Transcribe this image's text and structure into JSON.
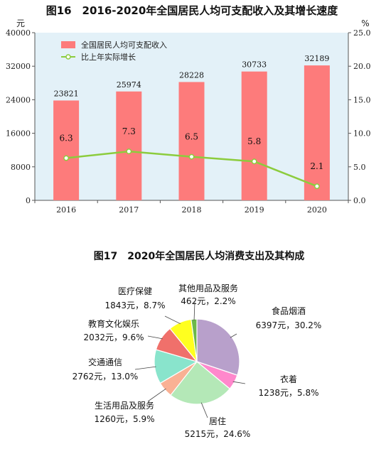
{
  "chart_data": [
    {
      "type": "bar",
      "title": "图16　2016-2020年全国居民人均可支配收入及其增长速度",
      "left_unit": "元",
      "right_unit": "%",
      "categories": [
        "2016",
        "2017",
        "2018",
        "2019",
        "2020"
      ],
      "left_ticks": [
        0,
        8000,
        16000,
        24000,
        32000,
        40000
      ],
      "right_ticks": [
        "0.0",
        "5.0",
        "10.0",
        "15.0",
        "20.0",
        "25.0"
      ],
      "ylim": [
        0,
        40000
      ],
      "y2lim": [
        0,
        25
      ],
      "grid": false,
      "legend_position": "top-left",
      "series": [
        {
          "name": "全国居民人均可支配收入",
          "type": "bar",
          "axis": "left",
          "values": [
            23821,
            25974,
            28228,
            30733,
            32189
          ]
        },
        {
          "name": "比上年实际增长",
          "type": "line",
          "axis": "right",
          "values": [
            6.3,
            7.3,
            6.5,
            5.8,
            2.1
          ]
        }
      ],
      "value_labels": {
        "bars": [
          "23821",
          "25974",
          "28228",
          "30733",
          "32189"
        ],
        "line": [
          "6.3",
          "7.3",
          "6.5",
          "5.8",
          "2.1"
        ]
      },
      "colors": {
        "bars": "#fd7b7b",
        "line": "#8ccc3d",
        "plot_background": "#e3f1f8"
      }
    },
    {
      "type": "pie",
      "title": "图17　2020年全国居民人均消费支出及其构成",
      "slices": [
        {
          "name": "食品烟酒",
          "value": 6397,
          "percent": 30.2,
          "value_label": "6397元，30.2%",
          "color": "#b8a0cb"
        },
        {
          "name": "衣着",
          "value": 1238,
          "percent": 5.8,
          "value_label": "1238元，5.8%",
          "color": "#ff88cc"
        },
        {
          "name": "居住",
          "value": 5215,
          "percent": 24.6,
          "value_label": "5215元，24.6%",
          "color": "#b4e8b7"
        },
        {
          "name": "生活用品及服务",
          "value": 1260,
          "percent": 5.9,
          "value_label": "1260元，5.9%",
          "color": "#f9b194"
        },
        {
          "name": "交通通信",
          "value": 2762,
          "percent": 13.0,
          "value_label": "2762元，13.0%",
          "color": "#89e4cc"
        },
        {
          "name": "教育文化娱乐",
          "value": 2032,
          "percent": 9.6,
          "value_label": "2032元，9.6%",
          "color": "#f0706b"
        },
        {
          "name": "医疗保健",
          "value": 1843,
          "percent": 8.7,
          "value_label": "1843元，8.7%",
          "color": "#ffff1f"
        },
        {
          "name": "其他用品及服务",
          "value": 462,
          "percent": 2.2,
          "value_label": "462元，2.2%",
          "color": "#6cb849"
        }
      ]
    }
  ]
}
